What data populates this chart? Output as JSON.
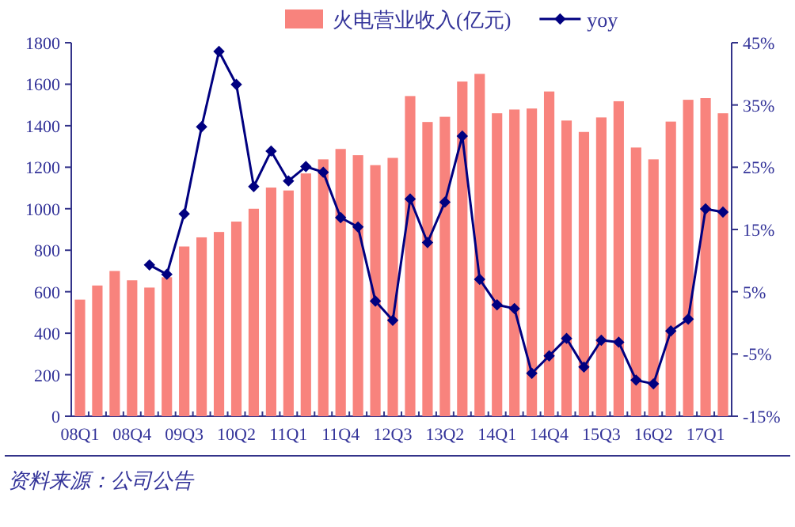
{
  "chart_data": {
    "type": "bar",
    "categories": [
      "08Q1",
      null,
      null,
      "08Q4",
      null,
      null,
      "09Q3",
      null,
      null,
      "10Q2",
      null,
      null,
      "11Q1",
      null,
      null,
      "11Q4",
      null,
      null,
      "12Q3",
      null,
      null,
      "13Q2",
      null,
      null,
      "14Q1",
      null,
      null,
      "14Q4",
      null,
      null,
      "15Q3",
      null,
      null,
      "16Q2",
      null,
      null,
      "17Q1",
      null
    ],
    "series": [
      {
        "name": "火电营业收入(亿元)",
        "color": "#f8837d",
        "values": [
          562,
          630,
          700,
          655,
          620,
          670,
          818,
          862,
          888,
          938,
          1000,
          1102,
          1088,
          1170,
          1238,
          1288,
          1258,
          1210,
          1245,
          1543,
          1418,
          1443,
          1613,
          1650,
          1460,
          1478,
          1483,
          1565,
          1425,
          1370,
          1440,
          1518,
          1295,
          1238,
          1420,
          1525,
          1533,
          1460
        ]
      },
      {
        "name": "yoy",
        "type": "line",
        "axis": "y2",
        "marker": "diamond",
        "color": "#000080",
        "values": [
          null,
          null,
          null,
          null,
          9.3,
          7.8,
          17.5,
          31.5,
          43.6,
          38.3,
          21.9,
          27.6,
          22.8,
          25.1,
          24.2,
          16.9,
          15.4,
          3.5,
          0.4,
          19.9,
          12.9,
          19.4,
          30,
          7,
          2.9,
          2.3,
          -8.1,
          -5.3,
          -2.5,
          -7.1,
          -2.8,
          -3.1,
          -9.2,
          -9.8,
          -1.3,
          0.6,
          18.3,
          17.8
        ]
      }
    ],
    "ylim": [
      0,
      1800
    ],
    "yticks": [
      0,
      200,
      400,
      600,
      800,
      1000,
      1200,
      1400,
      1600,
      1800
    ],
    "y2lim": [
      -15,
      45
    ],
    "y2ticks": [
      {
        "value": -15,
        "label": "-15%"
      },
      {
        "value": -5,
        "label": "-5%"
      },
      {
        "value": 5,
        "label": "5%"
      },
      {
        "value": 15,
        "label": "15%"
      },
      {
        "value": 25,
        "label": "25%"
      },
      {
        "value": 35,
        "label": "35%"
      },
      {
        "value": 45,
        "label": "45%"
      }
    ],
    "legend": "top right",
    "annotations": [
      "资料来源：公司公告"
    ]
  }
}
